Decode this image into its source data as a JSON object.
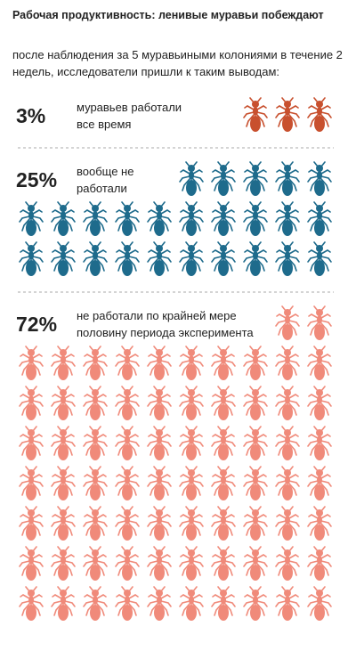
{
  "chart_data": {
    "type": "pictogram",
    "title": "Рабочая продуктивность: ленивые муравьи побеждают",
    "subtitle": "после наблюдения за 5 муравьиными колониями в течение 2 недель, исследователи пришли к таким выводам:",
    "categories": [
      "муравьев работали все время",
      "вообще не работали",
      "не работали по крайней мере половину периода эксперимента"
    ],
    "values": [
      3,
      25,
      72
    ],
    "value_labels": [
      "3%",
      "25%",
      "72%"
    ],
    "colors": [
      "#c8502e",
      "#1e6b8c",
      "#f08a7a"
    ]
  }
}
